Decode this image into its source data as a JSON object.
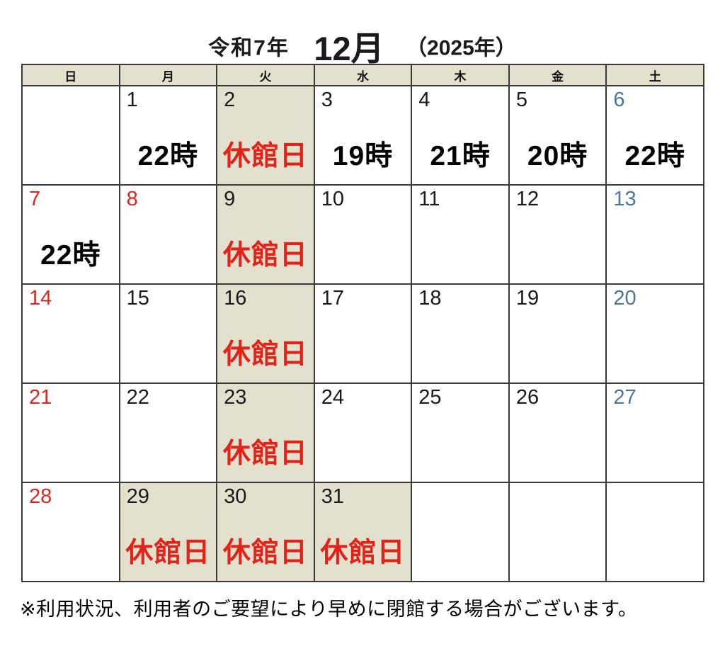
{
  "title": {
    "era": "令和7年",
    "month": "12月",
    "year_paren": "（2025年）"
  },
  "weekday_headers": [
    "日",
    "月",
    "火",
    "水",
    "木",
    "金",
    "土"
  ],
  "weeks": [
    [
      {
        "day": "",
        "label": "",
        "label_type": "",
        "num_color": "",
        "closed": false
      },
      {
        "day": "1",
        "label": "22時",
        "label_type": "time",
        "num_color": "black",
        "closed": false
      },
      {
        "day": "2",
        "label": "休館日",
        "label_type": "closed",
        "num_color": "black",
        "closed": true
      },
      {
        "day": "3",
        "label": "19時",
        "label_type": "time",
        "num_color": "black",
        "closed": false
      },
      {
        "day": "4",
        "label": "21時",
        "label_type": "time",
        "num_color": "black",
        "closed": false
      },
      {
        "day": "5",
        "label": "20時",
        "label_type": "time",
        "num_color": "black",
        "closed": false
      },
      {
        "day": "6",
        "label": "22時",
        "label_type": "time",
        "num_color": "blue",
        "closed": false
      }
    ],
    [
      {
        "day": "7",
        "label": "22時",
        "label_type": "time",
        "num_color": "red",
        "closed": false
      },
      {
        "day": "8",
        "label": "",
        "label_type": "",
        "num_color": "red",
        "closed": false
      },
      {
        "day": "9",
        "label": "休館日",
        "label_type": "closed",
        "num_color": "black",
        "closed": true
      },
      {
        "day": "10",
        "label": "",
        "label_type": "",
        "num_color": "black",
        "closed": false
      },
      {
        "day": "11",
        "label": "",
        "label_type": "",
        "num_color": "black",
        "closed": false
      },
      {
        "day": "12",
        "label": "",
        "label_type": "",
        "num_color": "black",
        "closed": false
      },
      {
        "day": "13",
        "label": "",
        "label_type": "",
        "num_color": "blue",
        "closed": false
      }
    ],
    [
      {
        "day": "14",
        "label": "",
        "label_type": "",
        "num_color": "red",
        "closed": false
      },
      {
        "day": "15",
        "label": "",
        "label_type": "",
        "num_color": "black",
        "closed": false
      },
      {
        "day": "16",
        "label": "休館日",
        "label_type": "closed",
        "num_color": "black",
        "closed": true
      },
      {
        "day": "17",
        "label": "",
        "label_type": "",
        "num_color": "black",
        "closed": false
      },
      {
        "day": "18",
        "label": "",
        "label_type": "",
        "num_color": "black",
        "closed": false
      },
      {
        "day": "19",
        "label": "",
        "label_type": "",
        "num_color": "black",
        "closed": false
      },
      {
        "day": "20",
        "label": "",
        "label_type": "",
        "num_color": "blue",
        "closed": false
      }
    ],
    [
      {
        "day": "21",
        "label": "",
        "label_type": "",
        "num_color": "red",
        "closed": false
      },
      {
        "day": "22",
        "label": "",
        "label_type": "",
        "num_color": "black",
        "closed": false
      },
      {
        "day": "23",
        "label": "休館日",
        "label_type": "closed",
        "num_color": "black",
        "closed": true
      },
      {
        "day": "24",
        "label": "",
        "label_type": "",
        "num_color": "black",
        "closed": false
      },
      {
        "day": "25",
        "label": "",
        "label_type": "",
        "num_color": "black",
        "closed": false
      },
      {
        "day": "26",
        "label": "",
        "label_type": "",
        "num_color": "black",
        "closed": false
      },
      {
        "day": "27",
        "label": "",
        "label_type": "",
        "num_color": "blue",
        "closed": false
      }
    ],
    [
      {
        "day": "28",
        "label": "",
        "label_type": "",
        "num_color": "red",
        "closed": false
      },
      {
        "day": "29",
        "label": "休館日",
        "label_type": "closed",
        "num_color": "black",
        "closed": true
      },
      {
        "day": "30",
        "label": "休館日",
        "label_type": "closed",
        "num_color": "black",
        "closed": true
      },
      {
        "day": "31",
        "label": "休館日",
        "label_type": "closed",
        "num_color": "black",
        "closed": true
      },
      {
        "day": "",
        "label": "",
        "label_type": "",
        "num_color": "",
        "closed": false
      },
      {
        "day": "",
        "label": "",
        "label_type": "",
        "num_color": "",
        "closed": false
      },
      {
        "day": "",
        "label": "",
        "label_type": "",
        "num_color": "",
        "closed": false
      }
    ]
  ],
  "footer_note": "※利用状況、利用者のご要望により早めに閉館する場合がございます。",
  "colors": {
    "header_bg": "#e3e0cd",
    "closed_cell_bg": "#e3e0cd",
    "grid_border": "#3a3a3a",
    "sunday_holiday_red": "#d42a22",
    "closed_label_red": "#e2231a",
    "saturday_blue": "#4f7499",
    "text_black": "#1a1a1a"
  }
}
